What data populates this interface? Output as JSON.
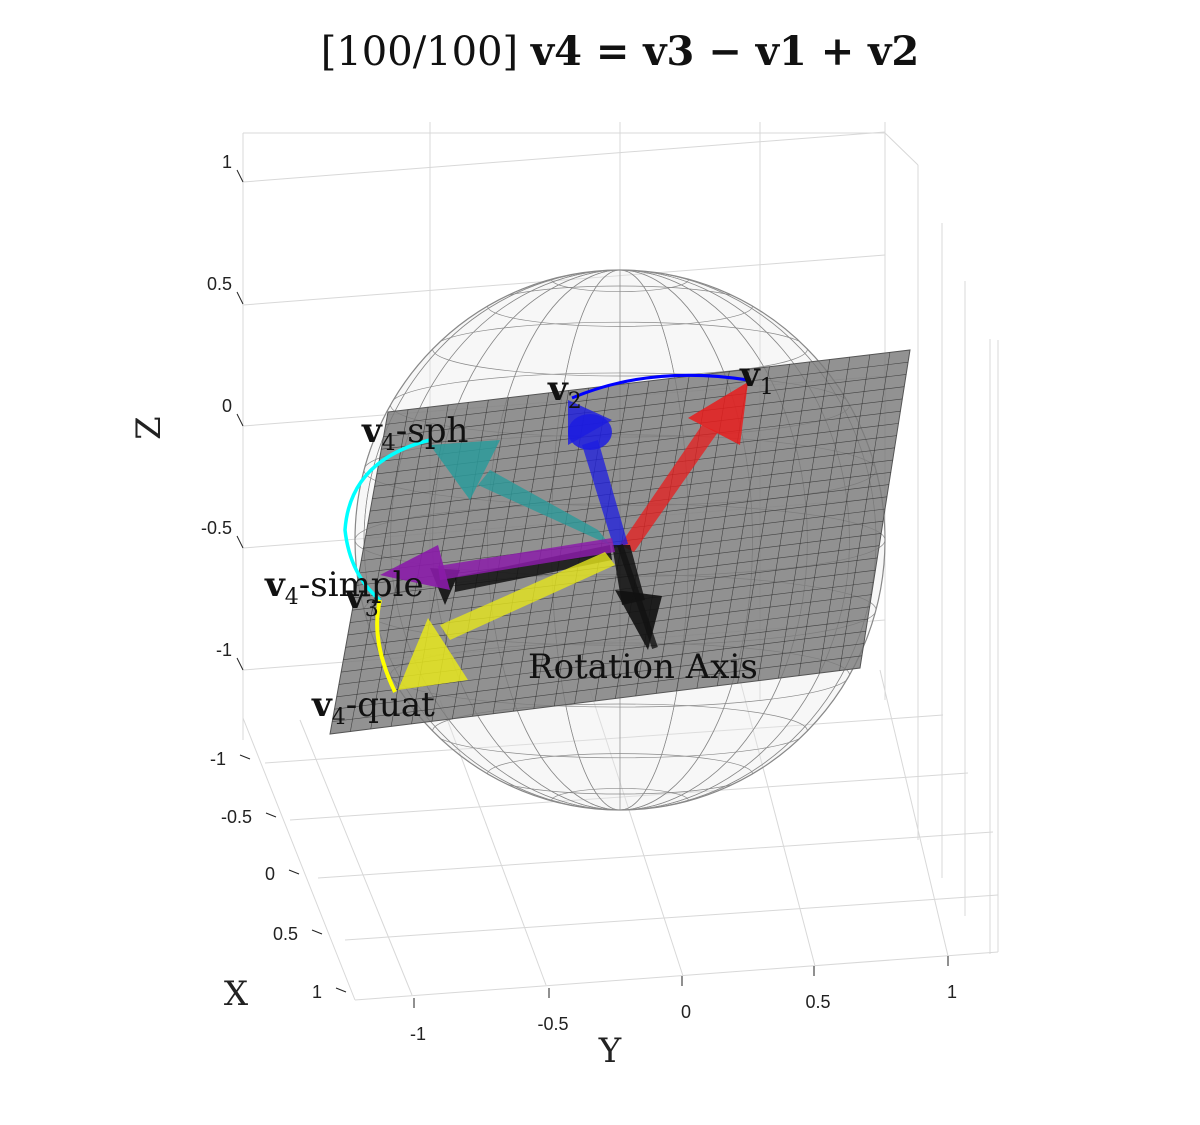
{
  "title": {
    "prefix": "[100/100]",
    "equation": "v4 = v3 − v1 + v2"
  },
  "chart_data": {
    "type": "3d-vector-plot",
    "title": "[100/100] v4 = v3 − v1 + v2",
    "xlabel": "X",
    "ylabel": "Y",
    "zlabel": "Z",
    "xticks": [
      "-1",
      "-0.5",
      "0",
      "0.5",
      "1"
    ],
    "yticks": [
      "-1",
      "-0.5",
      "0",
      "0.5",
      "1"
    ],
    "zticks": [
      "1",
      "0.5",
      "0",
      "-0.5",
      "-1"
    ],
    "xlim": [
      -1,
      1
    ],
    "ylim": [
      -1,
      1
    ],
    "zlim": [
      -1,
      1
    ],
    "grid": true,
    "objects": [
      {
        "name": "unit-sphere",
        "style": "wireframe",
        "color": "#808080"
      },
      {
        "name": "rotation-plane",
        "style": "grid",
        "color": "#777777"
      }
    ],
    "vectors": [
      {
        "label": "v1",
        "color": "#e81c1c"
      },
      {
        "label": "v2",
        "color": "#1c1ce0"
      },
      {
        "label": "v3",
        "color": "#111111"
      },
      {
        "label": "v4-simple",
        "color": "#8a1ca8"
      },
      {
        "label": "v4-quat",
        "color": "#e6e61c"
      },
      {
        "label": "v4-sph",
        "color": "#2a9a9a"
      },
      {
        "label": "Rotation Axis",
        "color": "#111111"
      }
    ],
    "arcs": [
      {
        "from": "v2",
        "to": "v1",
        "color": "#0000ff"
      },
      {
        "from": "v4-sph",
        "to": "v4-simple",
        "color": "#00ffff"
      },
      {
        "from": "v4-simple",
        "to": "v4-quat",
        "color": "#ffff00"
      }
    ],
    "labels": {
      "v1": {
        "bold": "v",
        "sub": "1",
        "rest": ""
      },
      "v2": {
        "bold": "v",
        "sub": "2",
        "rest": ""
      },
      "v3": {
        "bold": "v",
        "sub": "3",
        "rest": ""
      },
      "v4_simple": {
        "bold": "v",
        "sub": "4",
        "rest": "-simple"
      },
      "v4_quat": {
        "bold": "v",
        "sub": "4",
        "rest": "-quat"
      },
      "v4_sph": {
        "bold": "v",
        "sub": "4",
        "rest": "-sph"
      },
      "axis": "Rotation Axis"
    }
  }
}
